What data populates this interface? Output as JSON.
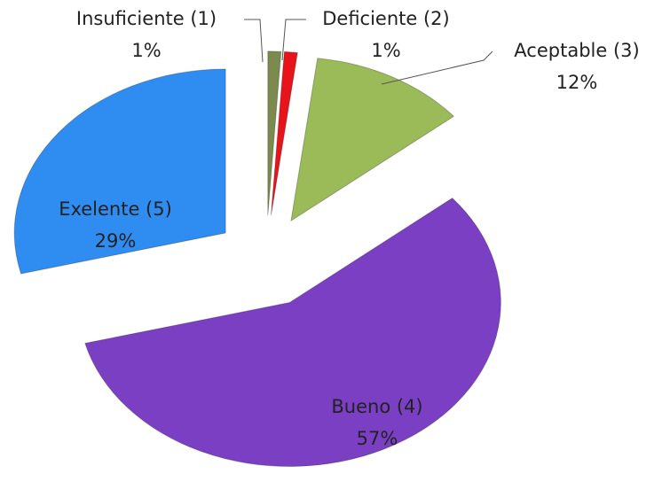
{
  "chart_data": {
    "type": "pie",
    "categories": [
      "Insuficiente (1)",
      "Deficiente (2)",
      "Aceptable (3)",
      "Bueno (4)",
      "Exelente (5)"
    ],
    "values": [
      1,
      1,
      12,
      57,
      29
    ],
    "value_labels": [
      "1%",
      "1%",
      "12%",
      "57%",
      "29%"
    ],
    "colors": [
      "#7d8a4e",
      "#e8141b",
      "#9bbb59",
      "#7b3fc4",
      "#2f8cf0"
    ]
  }
}
